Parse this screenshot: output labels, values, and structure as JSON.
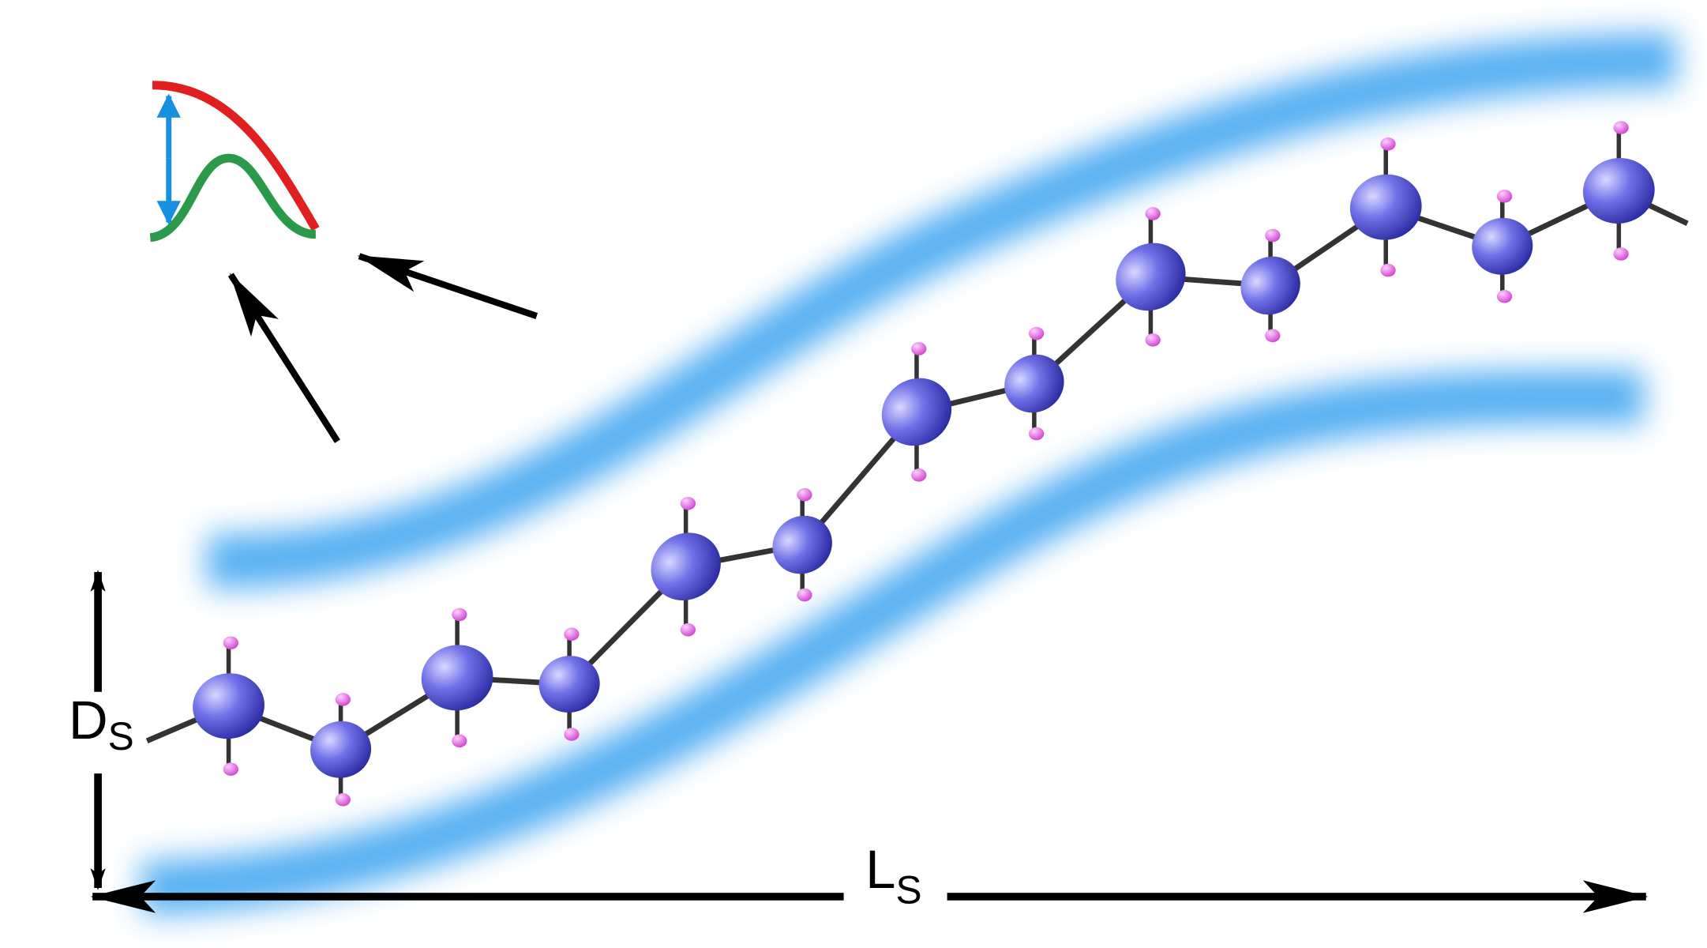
{
  "labels": {
    "diameter": {
      "main": "D",
      "sub": "S"
    },
    "length": {
      "main": "L",
      "sub": "S"
    }
  }
}
